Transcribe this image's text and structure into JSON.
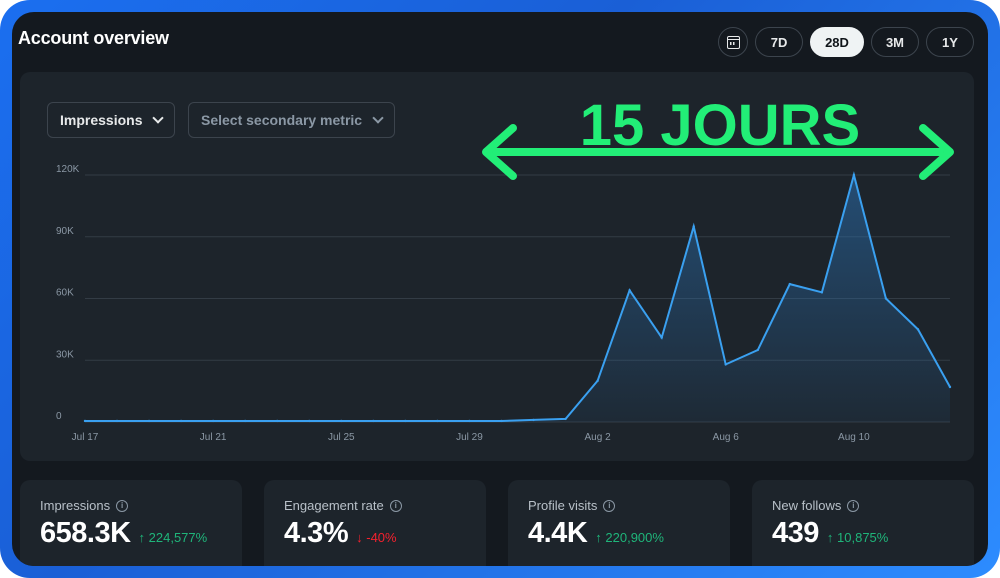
{
  "header": {
    "title": "Account overview",
    "date_ranges": [
      "7D",
      "28D",
      "3M",
      "1Y"
    ],
    "active_range": "28D"
  },
  "controls": {
    "primary_metric": "Impressions",
    "secondary_metric_placeholder": "Select secondary metric"
  },
  "annotation": {
    "text": "15 JOURS",
    "color": "#22ee77"
  },
  "colors": {
    "line": "#3aa0f0",
    "area": "#2a6fb0",
    "positive": "#1fb57a",
    "negative": "#f4212e"
  },
  "chart_data": {
    "type": "area",
    "x": [
      "Jul 17",
      "Jul 18",
      "Jul 19",
      "Jul 20",
      "Jul 21",
      "Jul 22",
      "Jul 23",
      "Jul 24",
      "Jul 25",
      "Jul 26",
      "Jul 27",
      "Jul 28",
      "Jul 29",
      "Jul 30",
      "Jul 31",
      "Aug 1",
      "Aug 2",
      "Aug 3",
      "Aug 4",
      "Aug 5",
      "Aug 6",
      "Aug 7",
      "Aug 8",
      "Aug 9",
      "Aug 10",
      "Aug 11",
      "Aug 12",
      "Aug 13"
    ],
    "series": [
      {
        "values": [
          500,
          500,
          500,
          500,
          500,
          500,
          500,
          500,
          500,
          500,
          500,
          500,
          500,
          500,
          1000,
          1500,
          20000,
          64000,
          41000,
          95000,
          28000,
          35000,
          67000,
          63000,
          120000,
          60000,
          45000,
          17000
        ]
      }
    ],
    "x_tick_labels": [
      "Jul 17",
      "Jul 21",
      "Jul 25",
      "Jul 29",
      "Aug 2",
      "Aug 6",
      "Aug 10"
    ],
    "y_tick_labels": [
      "0",
      "30K",
      "60K",
      "90K",
      "120K"
    ],
    "ylim": [
      0,
      120000
    ],
    "grid": true
  },
  "stats": [
    {
      "label": "Impressions",
      "value": "658.3K",
      "change": "224,577%",
      "direction": "up"
    },
    {
      "label": "Engagement rate",
      "value": "4.3%",
      "change": "-40%",
      "direction": "down"
    },
    {
      "label": "Profile visits",
      "value": "4.4K",
      "change": "220,900%",
      "direction": "up"
    },
    {
      "label": "New follows",
      "value": "439",
      "change": "10,875%",
      "direction": "up"
    }
  ]
}
